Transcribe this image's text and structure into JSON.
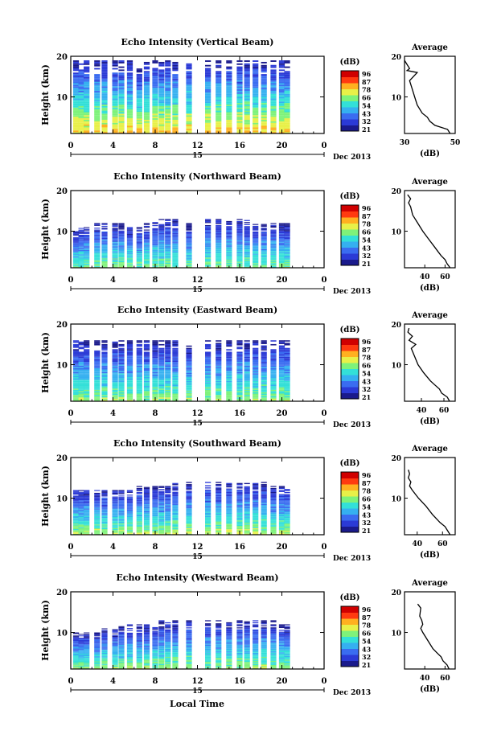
{
  "figure": {
    "xlabel": "Local Time",
    "date_label": "Dec 2013",
    "center_day": "15",
    "colorbar_unit": "(dB)",
    "colorbar_ticks": [
      "96",
      "87",
      "78",
      "66",
      "54",
      "43",
      "32",
      "21"
    ],
    "average_title": "Average",
    "average_xlabel": "(dB)",
    "colors": {
      "scale": [
        "#1a1a8c",
        "#2b3ad6",
        "#3a6cf0",
        "#35b0f0",
        "#33e0d8",
        "#7ef27a",
        "#e8f048",
        "#ffb020",
        "#ff3a10",
        "#d00000"
      ]
    }
  },
  "chart_data": [
    {
      "type": "heatmap",
      "title": "Echo Intensity (Vertical Beam)",
      "ylabel": "Height (km)",
      "xlabel": "Local Time",
      "x_ticks": [
        "0",
        "4",
        "8",
        "12",
        "16",
        "20",
        "0"
      ],
      "y_ticks": [
        "10",
        "20"
      ],
      "ylim": [
        1,
        20
      ],
      "xlim": [
        0,
        24
      ],
      "colorbar": {
        "unit": "dB",
        "min": 21,
        "max": 96
      },
      "data_columns_hours": [
        0.5,
        1.0,
        1.5,
        2.5,
        3.2,
        4.2,
        4.8,
        5.6,
        6.5,
        7.2,
        8.0,
        8.6,
        9.2,
        9.9,
        11.2,
        13.0,
        14.0,
        15.0,
        16.0,
        16.7,
        17.5,
        18.3,
        19.2,
        20.0,
        20.5
      ],
      "top_km": [
        19,
        19,
        19,
        19,
        19,
        19,
        19,
        19,
        17,
        19,
        19,
        19,
        19,
        19,
        19,
        19,
        19,
        19,
        19,
        19,
        19,
        19,
        19,
        19,
        19
      ],
      "surface_db": 75,
      "average": {
        "xlim": [
          30,
          50
        ],
        "x_ticks": [
          "30",
          "50"
        ],
        "y_ticks": [
          "10",
          "20"
        ],
        "height_km": [
          1,
          2,
          3,
          4,
          5,
          6,
          8,
          10,
          12,
          14,
          16,
          16.5,
          17,
          18,
          19
        ],
        "db": [
          48,
          47,
          42,
          40,
          39,
          37,
          35,
          34,
          33,
          32,
          35,
          31,
          32,
          31,
          30
        ]
      }
    },
    {
      "type": "heatmap",
      "title": "Echo Intensity (Northward Beam)",
      "ylabel": "Height (km)",
      "xlabel": "Local Time",
      "x_ticks": [
        "0",
        "4",
        "8",
        "12",
        "16",
        "20",
        "0"
      ],
      "y_ticks": [
        "10",
        "20"
      ],
      "ylim": [
        1,
        20
      ],
      "xlim": [
        0,
        24
      ],
      "colorbar": {
        "unit": "dB",
        "min": 21,
        "max": 96
      },
      "data_columns_hours": [
        0.5,
        1.0,
        1.5,
        2.5,
        3.2,
        4.2,
        4.8,
        5.6,
        6.5,
        7.2,
        8.0,
        8.6,
        9.2,
        9.9,
        11.2,
        13.0,
        14.0,
        15.0,
        16.0,
        16.7,
        17.5,
        18.3,
        19.2,
        20.0,
        20.5
      ],
      "top_km": [
        10,
        11,
        11,
        12,
        12,
        12,
        12,
        11,
        11,
        12,
        13,
        13,
        13,
        13,
        12,
        13,
        13,
        13,
        13,
        13,
        12,
        12,
        12,
        12,
        12
      ],
      "surface_db": 62,
      "average": {
        "xlim": [
          20,
          70
        ],
        "x_ticks": [
          "40",
          "60"
        ],
        "y_ticks": [
          "10",
          "20"
        ],
        "height_km": [
          1,
          2,
          3,
          4,
          5,
          6,
          8,
          10,
          12,
          14,
          16,
          17,
          18,
          19
        ],
        "db": [
          65,
          62,
          60,
          56,
          53,
          50,
          44,
          38,
          33,
          28,
          26,
          24,
          26,
          23
        ]
      }
    },
    {
      "type": "heatmap",
      "title": "Echo Intensity (Eastward Beam)",
      "ylabel": "Height (km)",
      "xlabel": "Local Time",
      "x_ticks": [
        "0",
        "4",
        "8",
        "12",
        "16",
        "20",
        "0"
      ],
      "y_ticks": [
        "10",
        "20"
      ],
      "ylim": [
        1,
        20
      ],
      "xlim": [
        0,
        24
      ],
      "colorbar": {
        "unit": "dB",
        "min": 21,
        "max": 96
      },
      "data_columns_hours": [
        0.5,
        1.0,
        1.5,
        2.5,
        3.2,
        4.2,
        4.8,
        5.6,
        6.5,
        7.2,
        8.0,
        8.6,
        9.2,
        9.9,
        11.2,
        13.0,
        14.0,
        15.0,
        16.0,
        16.7,
        17.5,
        18.3,
        19.2,
        20.0,
        20.5
      ],
      "top_km": [
        16,
        16,
        16,
        16,
        16,
        16,
        16,
        16,
        16,
        16,
        16,
        16,
        16,
        16,
        15,
        16,
        16,
        16,
        16,
        16,
        16,
        16,
        16,
        16,
        16
      ],
      "surface_db": 64,
      "average": {
        "xlim": [
          25,
          70
        ],
        "x_ticks": [
          "40",
          "60"
        ],
        "y_ticks": [
          "10",
          "20"
        ],
        "height_km": [
          1,
          2,
          3,
          4,
          5,
          6,
          8,
          10,
          12,
          14,
          15,
          16,
          17,
          18,
          19
        ],
        "db": [
          65,
          63,
          58,
          56,
          52,
          48,
          42,
          37,
          34,
          31,
          35,
          29,
          32,
          28,
          29
        ]
      }
    },
    {
      "type": "heatmap",
      "title": "Echo Intensity (Southward Beam)",
      "ylabel": "Height (km)",
      "xlabel": "Local Time",
      "x_ticks": [
        "0",
        "4",
        "8",
        "12",
        "16",
        "20",
        "0"
      ],
      "y_ticks": [
        "10",
        "20"
      ],
      "ylim": [
        1,
        20
      ],
      "xlim": [
        0,
        24
      ],
      "colorbar": {
        "unit": "dB",
        "min": 21,
        "max": 96
      },
      "data_columns_hours": [
        0.5,
        1.0,
        1.5,
        2.5,
        3.2,
        4.2,
        4.8,
        5.6,
        6.5,
        7.2,
        8.0,
        8.6,
        9.2,
        9.9,
        11.2,
        13.0,
        14.0,
        15.0,
        16.0,
        16.7,
        17.5,
        18.3,
        19.2,
        20.0,
        20.5
      ],
      "top_km": [
        12,
        12,
        12,
        12,
        12,
        12,
        12,
        12,
        13,
        13,
        13,
        13,
        13,
        14,
        14,
        14,
        14,
        14,
        14,
        14,
        14,
        14,
        13,
        13,
        13
      ],
      "surface_db": 66,
      "average": {
        "xlim": [
          30,
          70
        ],
        "x_ticks": [
          "40",
          "60"
        ],
        "y_ticks": [
          "10",
          "20"
        ],
        "height_km": [
          1,
          2,
          3,
          4,
          5,
          6,
          8,
          10,
          12,
          13,
          14,
          15,
          16,
          17
        ],
        "db": [
          66,
          64,
          62,
          58,
          55,
          52,
          47,
          41,
          36,
          34,
          35,
          33,
          34,
          33
        ]
      }
    },
    {
      "type": "heatmap",
      "title": "Echo Intensity (Westward Beam)",
      "ylabel": "Height (km)",
      "xlabel": "Local Time",
      "x_ticks": [
        "0",
        "4",
        "8",
        "12",
        "16",
        "20",
        "0"
      ],
      "y_ticks": [
        "10",
        "20"
      ],
      "ylim": [
        1,
        20
      ],
      "xlim": [
        0,
        24
      ],
      "colorbar": {
        "unit": "dB",
        "min": 21,
        "max": 96
      },
      "data_columns_hours": [
        0.5,
        1.0,
        1.5,
        2.5,
        3.2,
        4.2,
        4.8,
        5.6,
        6.5,
        7.2,
        8.0,
        8.6,
        9.2,
        9.9,
        11.2,
        13.0,
        14.0,
        15.0,
        16.0,
        16.7,
        17.5,
        18.3,
        19.2,
        20.0,
        20.5
      ],
      "top_km": [
        10,
        10,
        10,
        10,
        11,
        11,
        12,
        12,
        12,
        12,
        12,
        13,
        13,
        13,
        13,
        13,
        13,
        13,
        13,
        13,
        13,
        13,
        13,
        12,
        12
      ],
      "surface_db": 64,
      "average": {
        "xlim": [
          20,
          70
        ],
        "x_ticks": [
          "40",
          "60"
        ],
        "y_ticks": [
          "10",
          "20"
        ],
        "height_km": [
          1,
          2,
          3,
          4,
          5,
          6,
          8,
          10,
          11,
          12,
          13,
          14,
          16,
          17
        ],
        "db": [
          64,
          62,
          58,
          56,
          52,
          48,
          43,
          38,
          36,
          38,
          37,
          35,
          36,
          33
        ]
      }
    }
  ]
}
